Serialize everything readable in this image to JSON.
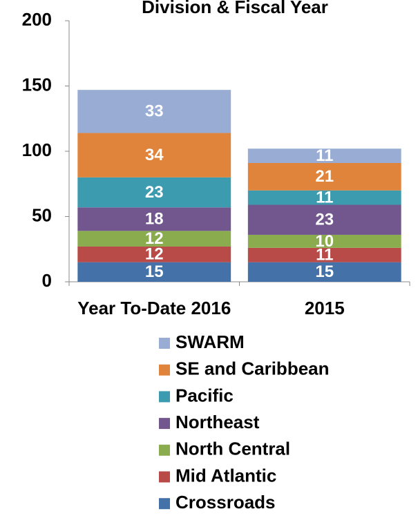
{
  "chart_data": {
    "type": "stacked_bar",
    "title": "Division & Fiscal Year",
    "categories": [
      "Year To-Date 2016",
      "2015"
    ],
    "series": [
      {
        "name": "Crossroads",
        "color": "#4472a8",
        "values": [
          15,
          15
        ]
      },
      {
        "name": "Mid Atlantic",
        "color": "#b84a47",
        "values": [
          12,
          11
        ]
      },
      {
        "name": "North Central",
        "color": "#8aac4e",
        "values": [
          12,
          10
        ]
      },
      {
        "name": "Northeast",
        "color": "#72578f",
        "values": [
          18,
          23
        ]
      },
      {
        "name": "Pacific",
        "color": "#3d9bb0",
        "values": [
          23,
          11
        ]
      },
      {
        "name": "SE and Caribbean",
        "color": "#e0843c",
        "values": [
          34,
          21
        ]
      },
      {
        "name": "SWARM",
        "color": "#98acd4",
        "values": [
          33,
          11
        ]
      }
    ],
    "ylim": [
      0,
      200
    ],
    "yticks": [
      0,
      50,
      100,
      150,
      200
    ],
    "legend": "bottom"
  }
}
